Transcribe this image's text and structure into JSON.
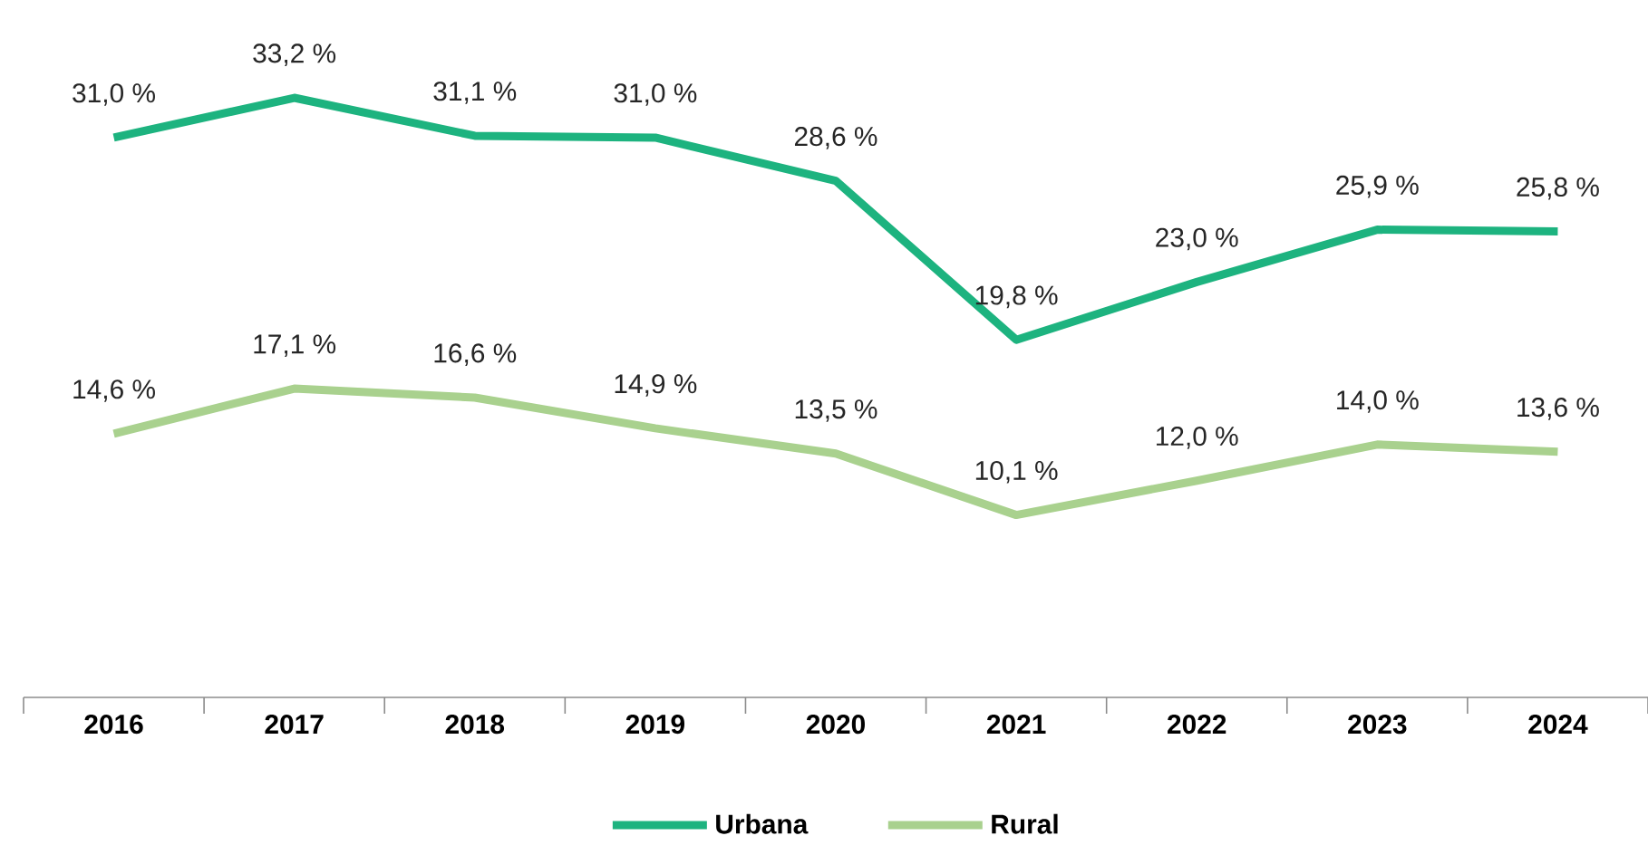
{
  "chart_data": {
    "type": "line",
    "categories": [
      "2016",
      "2017",
      "2018",
      "2019",
      "2020",
      "2021",
      "2022",
      "2023",
      "2024"
    ],
    "series": [
      {
        "name": "Urbana",
        "color": "#1db37f",
        "values": [
          31.0,
          33.2,
          31.1,
          31.0,
          28.6,
          19.8,
          23.0,
          25.9,
          25.8
        ],
        "value_labels": [
          "31,0 %",
          "33,2 %",
          "31,1 %",
          "31,0 %",
          "28,6 %",
          "19,8 %",
          "23,0 %",
          "25,9 %",
          "25,8 %"
        ]
      },
      {
        "name": "Rural",
        "color": "#a9d18e",
        "values": [
          14.6,
          17.1,
          16.6,
          14.9,
          13.5,
          10.1,
          12.0,
          14.0,
          13.6
        ],
        "value_labels": [
          "14,6 %",
          "17,1 %",
          "16,6 %",
          "14,9 %",
          "13,5 %",
          "10,1 %",
          "12,0 %",
          "14,0 %",
          "13,6 %"
        ]
      }
    ],
    "tick_labels": "x",
    "grid": false,
    "legend": "bottom",
    "marker": "none",
    "line_style": "solid"
  }
}
